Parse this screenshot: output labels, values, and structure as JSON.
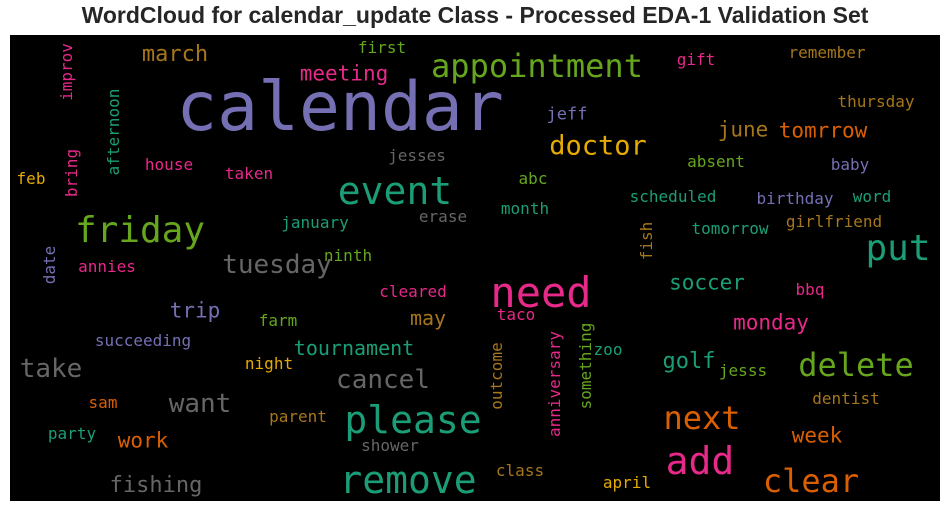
{
  "title": "WordCloud for calendar_update Class - Processed EDA-1 Validation Set",
  "colors": {
    "purple": "#7570b3",
    "teal": "#1b9e77",
    "orange": "#d95f02",
    "pink": "#e7298a",
    "green": "#66a61e",
    "gold": "#e6ab02",
    "brown": "#a6761d",
    "gray": "#666666"
  },
  "words": [
    "calendar",
    "appointment",
    "event",
    "friday",
    "need",
    "put",
    "please",
    "remove",
    "add",
    "delete",
    "next",
    "clear",
    "tuesday",
    "doctor",
    "cancel",
    "want",
    "take",
    "meeting",
    "march",
    "june",
    "tomrrow",
    "soccer",
    "monday",
    "golf",
    "tournament",
    "fishing",
    "trip",
    "may",
    "week",
    "work",
    "first",
    "remember",
    "gift",
    "thursday",
    "jeff",
    "jesses",
    "house",
    "taken",
    "feb",
    "abc",
    "absent",
    "baby",
    "scheduled",
    "birthday",
    "word",
    "tomorrow",
    "girlfriend",
    "january",
    "erase",
    "month",
    "ninth",
    "annies",
    "cleared",
    "bbq",
    "farm",
    "taco",
    "succeeding",
    "night",
    "zoo",
    "jesss",
    "sam",
    "dentist",
    "parent",
    "party",
    "shower",
    "class",
    "april",
    "improv",
    "afternoon",
    "bring",
    "date",
    "fish",
    "outcome",
    "anniversary",
    "something"
  ]
}
